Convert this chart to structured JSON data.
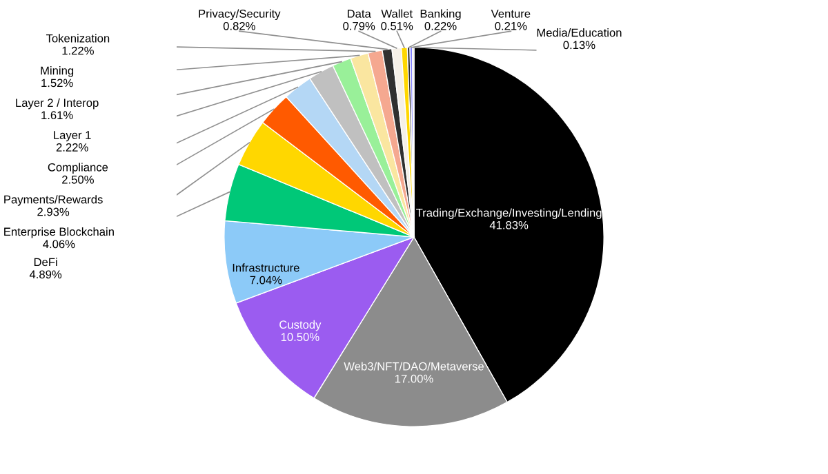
{
  "chart_data": {
    "type": "pie",
    "categories": [
      "Trading/Exchange/Investing/Lending",
      "Web3/NFT/DAO/Metaverse",
      "Custody",
      "Infrastructure",
      "DeFi",
      "Enterprise Blockchain",
      "Payments/Rewards",
      "Compliance",
      "Layer 1",
      "Layer 2 / Interop",
      "Mining",
      "Tokenization",
      "Privacy/Security",
      "Data",
      "Wallet",
      "Banking",
      "Venture",
      "Media/Education"
    ],
    "values": [
      41.83,
      17.0,
      10.5,
      7.04,
      4.89,
      4.06,
      2.93,
      2.5,
      2.22,
      1.61,
      1.52,
      1.22,
      0.82,
      0.79,
      0.51,
      0.22,
      0.21,
      0.13
    ],
    "value_labels": [
      "41.83%",
      "17.00%",
      "10.50%",
      "7.04%",
      "4.89%",
      "4.06%",
      "2.93%",
      "2.50%",
      "2.22%",
      "1.61%",
      "1.52%",
      "1.22%",
      "0.82%",
      "0.79%",
      "0.51%",
      "0.22%",
      "0.21%",
      "0.13%"
    ],
    "colors": [
      "#000000",
      "#8c8c8c",
      "#9b5cf0",
      "#8ccaf8",
      "#00c878",
      "#ffd700",
      "#ff5a00",
      "#b4d7f5",
      "#c0c0c0",
      "#99f099",
      "#fae6a0",
      "#f5a890",
      "#303030",
      "#f5f0e8",
      "#ffd700",
      "#303030",
      "#8080ff",
      "#d9d9d9"
    ]
  }
}
